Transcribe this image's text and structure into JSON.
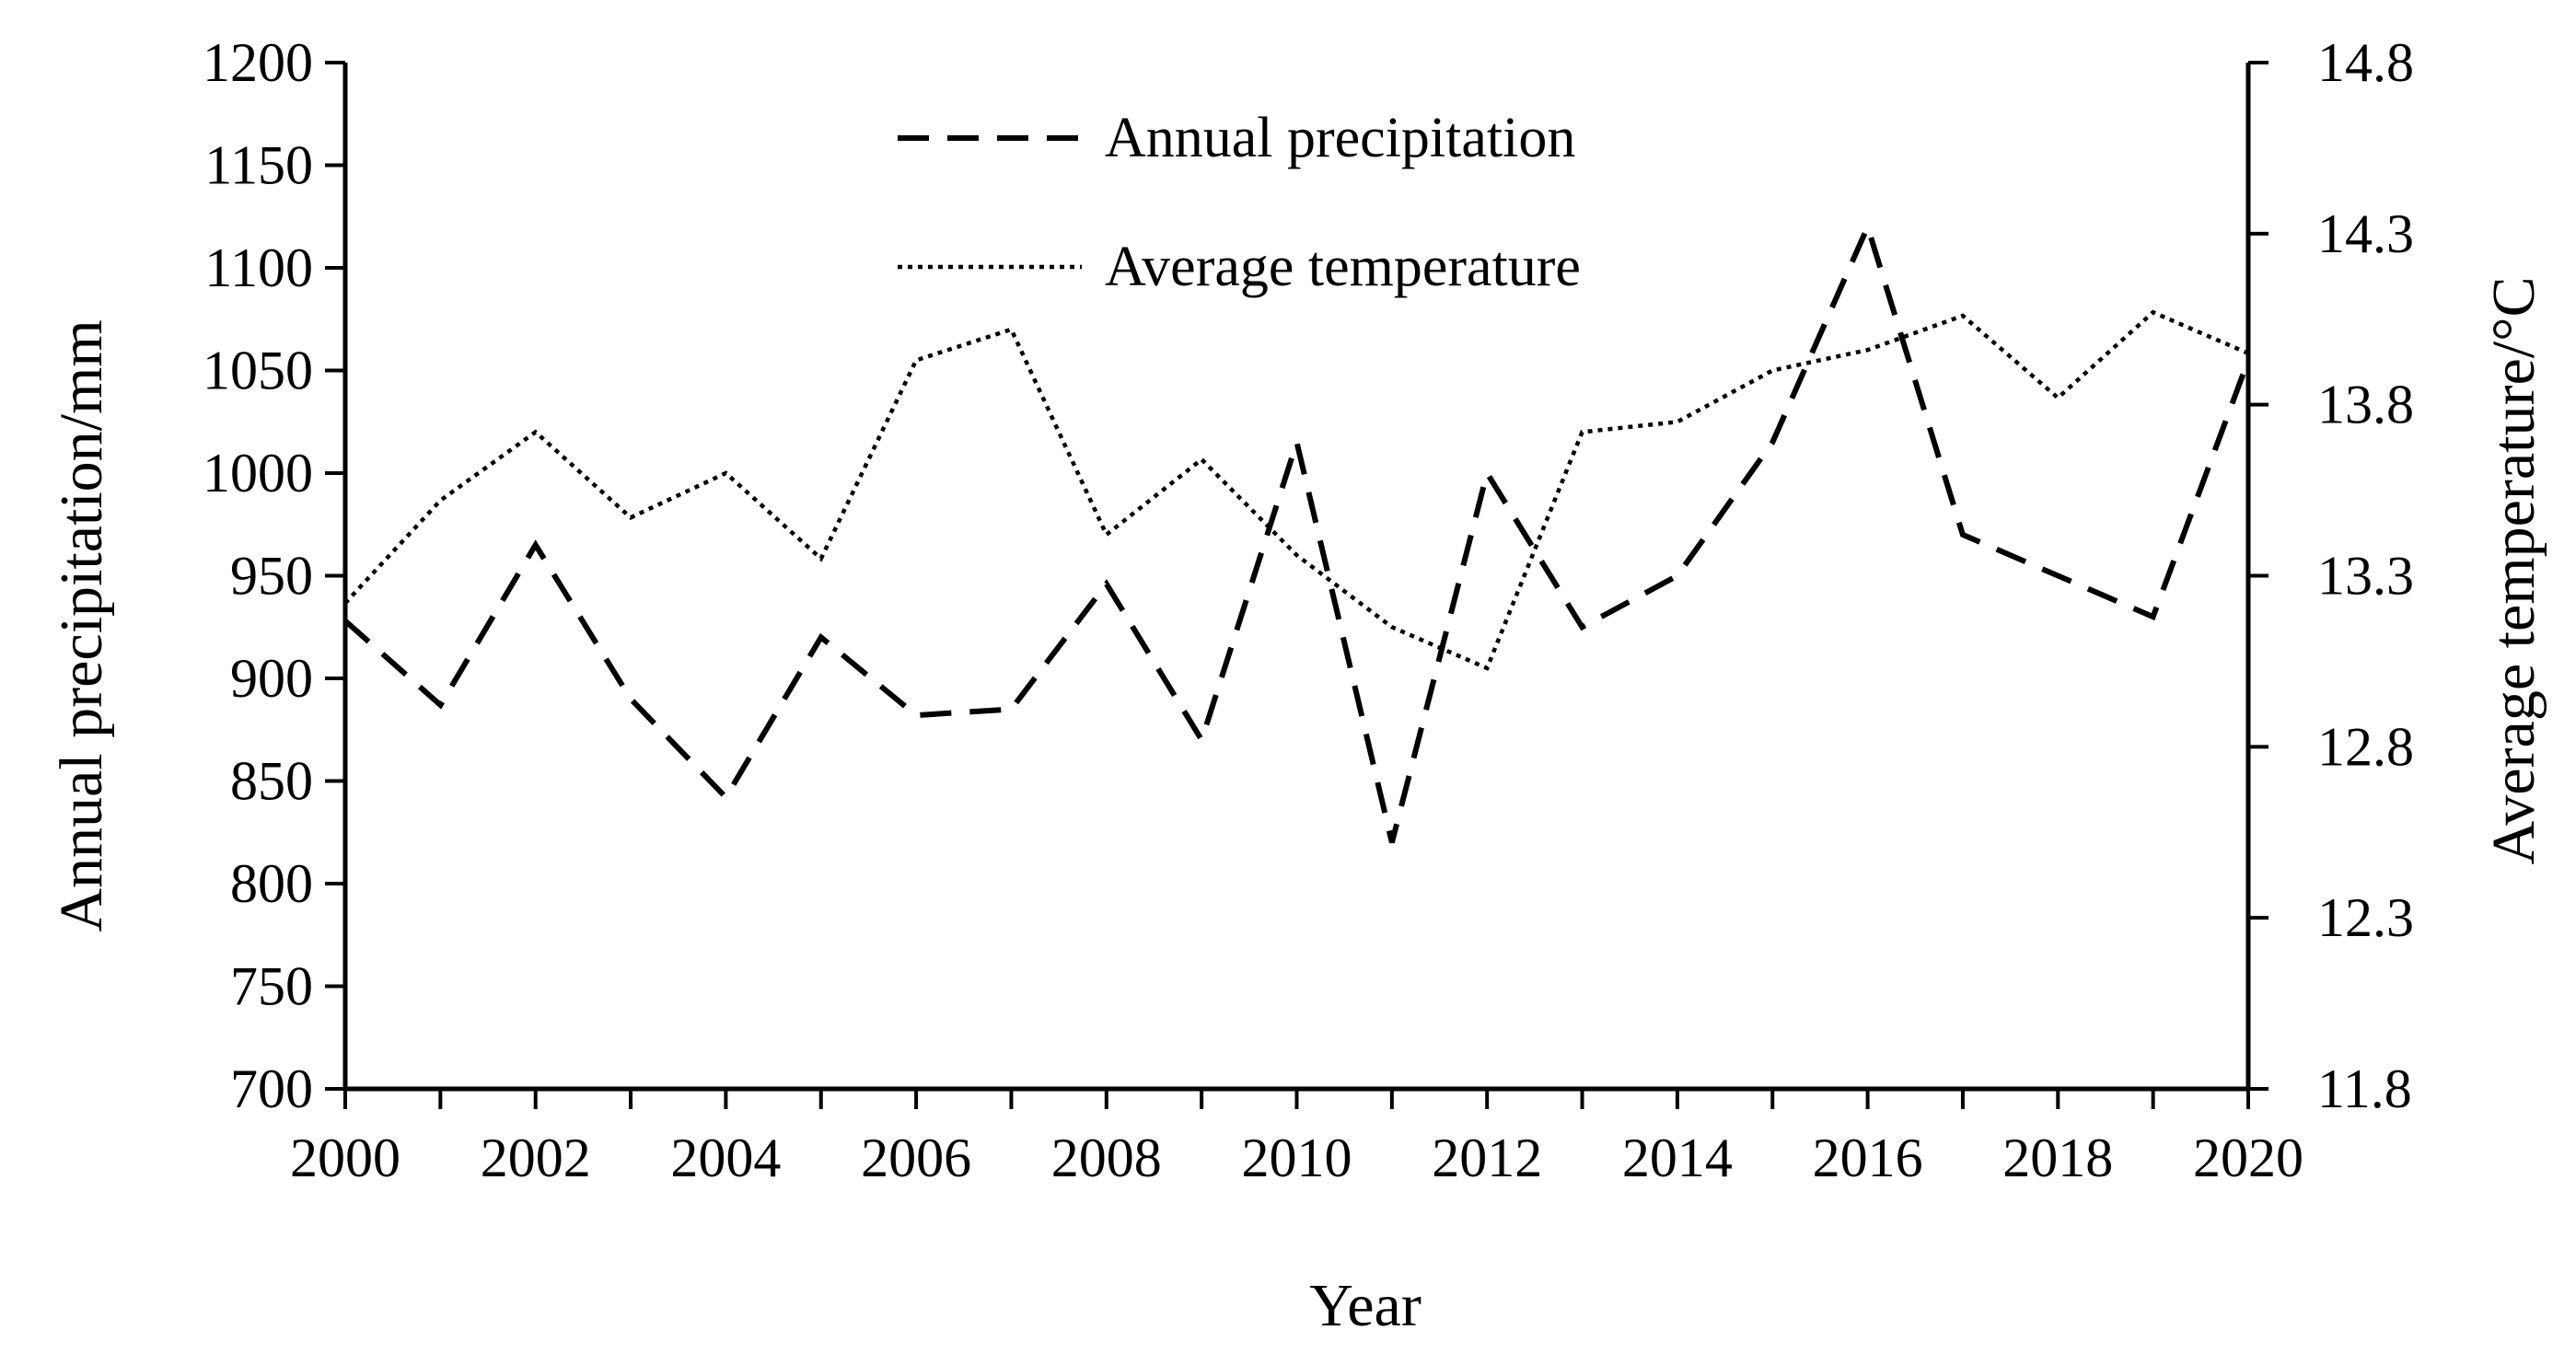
{
  "chart_data": {
    "type": "line",
    "title": "",
    "xlabel": "Year",
    "ylabel_left": "Annual precipitation/mm",
    "ylabel_right": "Average temperature/°C",
    "xlim": [
      2000,
      2020
    ],
    "ylim_left": [
      700,
      1200
    ],
    "ylim_right": [
      11.8,
      14.8
    ],
    "x_ticks": [
      2000,
      2002,
      2004,
      2006,
      2008,
      2010,
      2012,
      2014,
      2016,
      2018,
      2020
    ],
    "x_tick_labels": [
      "2000",
      "2002",
      "2004",
      "2006",
      "2008",
      "2010",
      "2012",
      "2014",
      "2016",
      "2018",
      "2020"
    ],
    "y_left_ticks": [
      700,
      750,
      800,
      850,
      900,
      950,
      1000,
      1050,
      1100,
      1150,
      1200
    ],
    "y_left_tick_labels": [
      "700",
      "750",
      "800",
      "850",
      "900",
      "950",
      "1000",
      "1050",
      "1100",
      "1150",
      "1200"
    ],
    "y_right_ticks": [
      11.8,
      12.3,
      12.8,
      13.3,
      13.8,
      14.3,
      14.8
    ],
    "y_right_tick_labels": [
      "11.8",
      "12.3",
      "12.8",
      "13.3",
      "13.8",
      "14.3",
      "14.8"
    ],
    "grid": false,
    "legend_position": "top-center",
    "x": [
      2000,
      2001,
      2002,
      2003,
      2004,
      2005,
      2006,
      2007,
      2008,
      2009,
      2010,
      2011,
      2012,
      2013,
      2014,
      2015,
      2016,
      2017,
      2018,
      2019,
      2020
    ],
    "series": [
      {
        "name": "Annual precipitation",
        "axis": "left",
        "style": "dashed",
        "values": [
          928,
          887,
          965,
          890,
          842,
          920,
          882,
          885,
          946,
          870,
          1015,
          820,
          1000,
          925,
          950,
          1015,
          1120,
          970,
          950,
          930,
          1055
        ]
      },
      {
        "name": "Average temperature",
        "axis": "right",
        "style": "dotted",
        "values": [
          13.22,
          13.52,
          13.72,
          13.47,
          13.6,
          13.35,
          13.93,
          14.02,
          13.42,
          13.64,
          13.36,
          13.15,
          13.03,
          13.72,
          13.75,
          13.9,
          13.96,
          14.06,
          13.82,
          14.07,
          13.95
        ]
      }
    ]
  }
}
